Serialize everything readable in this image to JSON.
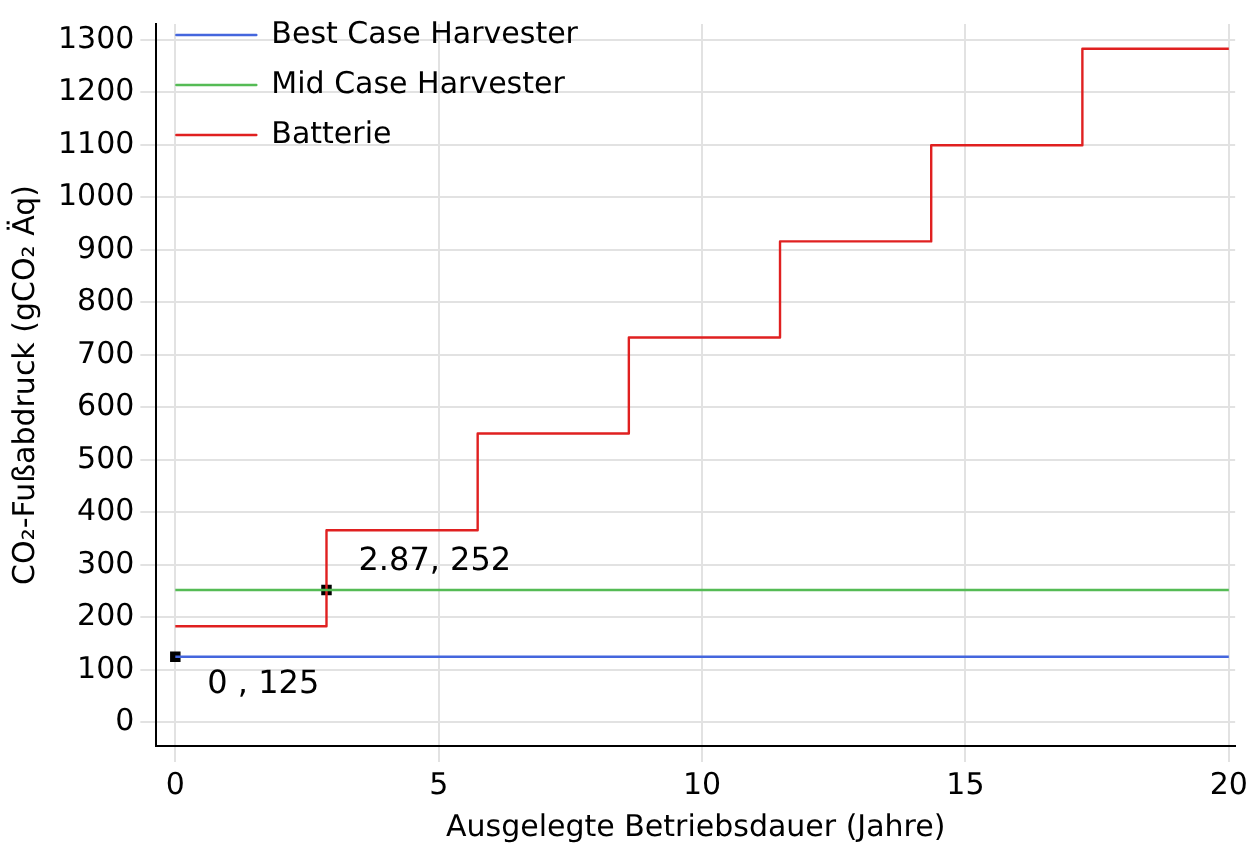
{
  "chart_data": {
    "type": "line",
    "xlabel": "Ausgelegte Betriebsdauer (Jahre)",
    "ylabel": "CO₂-Fußabdruck (gCO₂ Äq)",
    "xlim": [
      -0.36,
      20.12
    ],
    "xticks": [
      0,
      5,
      10,
      15,
      20
    ],
    "ylim": [
      -45,
      1330
    ],
    "yticks": [
      0,
      100,
      200,
      300,
      400,
      500,
      600,
      700,
      800,
      900,
      1000,
      1100,
      1200,
      1300
    ],
    "grid": true,
    "legend": "top left",
    "marker": "none",
    "line_style": "solid",
    "series": [
      {
        "name": "Best Case Harvester",
        "color": "#4466dd",
        "x": [
          0,
          20
        ],
        "values": [
          125,
          125
        ]
      },
      {
        "name": "Mid Case Harvester",
        "color": "#55bb55",
        "x": [
          0,
          20
        ],
        "values": [
          252,
          252
        ]
      },
      {
        "name": "Batterie",
        "color": "#e02020",
        "type": "step",
        "x": [
          0,
          2.87,
          5.74,
          8.61,
          11.48,
          14.35,
          17.22,
          20
        ],
        "values": [
          183,
          366,
          550,
          733,
          916,
          1099,
          1283,
          1283
        ]
      },
      {
        "color": "#000000",
        "type": "scatter",
        "marker": "square",
        "x": [
          0,
          2.87
        ],
        "values": [
          125,
          252
        ]
      }
    ],
    "annotations": [
      {
        "text": "0 , 125",
        "x": 0,
        "y": 125
      },
      {
        "text": "2.87, 252",
        "x": 2.87,
        "y": 252
      }
    ]
  }
}
